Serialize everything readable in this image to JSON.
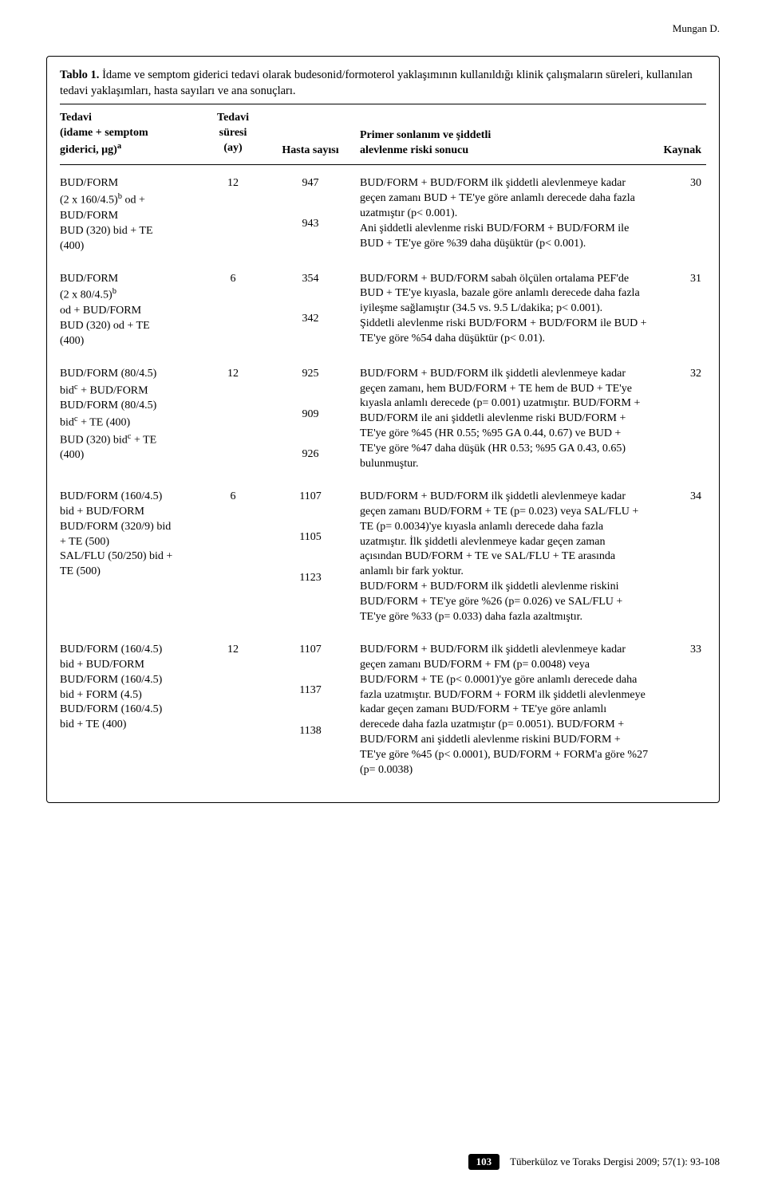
{
  "running_head": "Mungan D.",
  "table": {
    "caption_bold": "Tablo 1.",
    "caption": "İdame ve semptom giderici tedavi olarak budesonid/formoterol yaklaşımının kullanıldığı klinik çalışmaların süreleri, kullanılan tedavi yaklaşımları, hasta sayıları ve ana sonuçları.",
    "columns": {
      "c1_line1": "Tedavi",
      "c1_line2": "(idame + semptom",
      "c1_line3": "giderici, µg)",
      "c1_sup": "a",
      "c2_line1": "Tedavi",
      "c2_line2": "süresi",
      "c2_line3": "(ay)",
      "c3": "Hasta sayısı",
      "c4_line1": "Primer sonlanım ve şiddetli",
      "c4_line2": "alevlenme riski sonucu",
      "c5": "Kaynak"
    },
    "rows": [
      {
        "treatment_html": "BUD/FORM<br>(2 x 160/4.5)<sup>b</sup> od +<br>BUD/FORM<br>BUD (320) bid + TE<br>(400)",
        "duration": "12",
        "n": [
          "947",
          "943"
        ],
        "result": "BUD/FORM + BUD/FORM ilk şiddetli alevlenmeye kadar geçen zamanı BUD + TE'ye göre anlamlı derecede daha fazla uzatmıştır (p< 0.001).<br>Ani şiddetli alevlenme riski BUD/FORM + BUD/FORM ile BUD + TE'ye göre %39 daha düşüktür (p< 0.001).",
        "ref": "30"
      },
      {
        "treatment_html": "BUD/FORM<br>(2 x 80/4.5)<sup>b</sup><br>od + BUD/FORM<br>BUD (320) od + TE<br>(400)",
        "duration": "6",
        "n": [
          "354",
          "342"
        ],
        "result": "BUD/FORM + BUD/FORM sabah ölçülen ortalama PEF'de BUD + TE'ye kıyasla, bazale göre anlamlı derecede daha fazla iyileşme sağlamıştır (34.5 vs. 9.5 L/dakika; p< 0.001).<br>Şiddetli alevlenme riski BUD/FORM + BUD/FORM ile BUD + TE'ye göre %54 daha düşüktür (p< 0.01).",
        "ref": "31"
      },
      {
        "treatment_html": "BUD/FORM (80/4.5)<br>bid<sup>c</sup> + BUD/FORM<br>BUD/FORM (80/4.5)<br>bid<sup>c</sup> + TE (400)<br>BUD (320) bid<sup>c</sup> + TE<br>(400)",
        "duration": "12",
        "n": [
          "925",
          "909",
          "926"
        ],
        "result": "BUD/FORM + BUD/FORM ilk şiddetli alevlenmeye kadar geçen zamanı, hem BUD/FORM + TE hem de BUD + TE'ye kıyasla anlamlı derecede (p= 0.001) uzatmıştır. BUD/FORM + BUD/FORM ile ani şiddetli alevlenme riski BUD/FORM + TE'ye göre %45 (HR 0.55; %95 GA 0.44, 0.67) ve BUD + TE'ye göre %47 daha düşük (HR 0.53; %95 GA 0.43, 0.65) bulunmuştur.",
        "ref": "32"
      },
      {
        "treatment_html": "BUD/FORM (160/4.5)<br>bid + BUD/FORM<br>BUD/FORM (320/9) bid<br>+ TE (500)<br>SAL/FLU (50/250) bid +<br>TE (500)",
        "duration": "6",
        "n": [
          "1107",
          "1105",
          "1123"
        ],
        "result": "BUD/FORM + BUD/FORM ilk şiddetli alevlenmeye kadar geçen zamanı BUD/FORM + TE (p= 0.023) veya SAL/FLU + TE (p= 0.0034)'ye kıyasla anlamlı derecede daha fazla uzatmıştır. İlk şiddetli alevlenmeye kadar geçen zaman açısından BUD/FORM + TE ve SAL/FLU + TE arasında anlamlı bir fark yoktur.<br>BUD/FORM + BUD/FORM ilk şiddetli alevlenme riskini BUD/FORM + TE'ye göre %26 (p= 0.026) ve SAL/FLU + TE'ye göre %33 (p= 0.033) daha fazla azaltmıştır.",
        "ref": "34"
      },
      {
        "treatment_html": "BUD/FORM (160/4.5)<br>bid + BUD/FORM<br>BUD/FORM (160/4.5)<br>bid + FORM (4.5)<br>BUD/FORM (160/4.5)<br>bid + TE (400)",
        "duration": "12",
        "n": [
          "1107",
          "1137",
          "1138"
        ],
        "result": "BUD/FORM + BUD/FORM ilk şiddetli alevlenmeye kadar geçen zamanı BUD/FORM + FM (p= 0.0048) veya BUD/FORM + TE (p< 0.0001)'ye göre anlamlı derecede daha fazla uzatmıştır. BUD/FORM + FORM ilk şiddetli alevlenmeye kadar geçen zamanı BUD/FORM + TE'ye göre anlamlı derecede daha fazla uzatmıştır (p= 0.0051). BUD/FORM + BUD/FORM ani şiddetli alevlenme riskini BUD/FORM + TE'ye göre %45 (p< 0.0001), BUD/FORM + FORM'a göre %27 (p= 0.0038)",
        "ref": "33"
      }
    ]
  },
  "footer": {
    "page": "103",
    "journal": "Tüberküloz ve Toraks Dergisi 2009; 57(1): 93-108"
  }
}
